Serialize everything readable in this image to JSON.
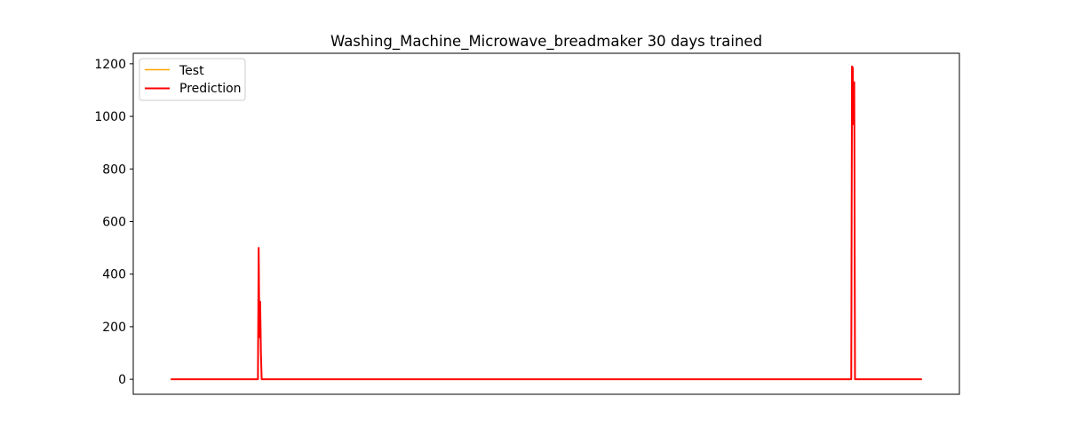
{
  "chart_data": {
    "type": "line",
    "title": "Washing_Machine_Microwave_breadmaker 30 days trained",
    "xlabel": "",
    "ylabel": "",
    "xlim": [
      -50,
      1050
    ],
    "ylim": [
      -57,
      1240
    ],
    "x_ticks_visible": false,
    "y_ticks": [
      0,
      200,
      400,
      600,
      800,
      1000,
      1200
    ],
    "grid": false,
    "legend_position": "upper-left",
    "colors": {
      "test": "#ffa500",
      "prediction": "#ff0000"
    },
    "series": [
      {
        "name": "Test",
        "color": "#ffa500",
        "points": [
          [
            0,
            0
          ],
          [
            116,
            0
          ],
          [
            117,
            500
          ],
          [
            118,
            160
          ],
          [
            119,
            295
          ],
          [
            120,
            100
          ],
          [
            121,
            0
          ],
          [
            906,
            0
          ],
          [
            907,
            1190
          ],
          [
            908,
            1185
          ],
          [
            909,
            970
          ],
          [
            910,
            1130
          ],
          [
            911,
            0
          ],
          [
            1000,
            0
          ]
        ]
      },
      {
        "name": "Prediction",
        "color": "#ff0000",
        "points": [
          [
            0,
            0
          ],
          [
            116,
            0
          ],
          [
            117,
            500
          ],
          [
            118,
            160
          ],
          [
            119,
            295
          ],
          [
            120,
            100
          ],
          [
            121,
            0
          ],
          [
            906,
            0
          ],
          [
            907,
            1190
          ],
          [
            908,
            1185
          ],
          [
            909,
            970
          ],
          [
            910,
            1130
          ],
          [
            911,
            0
          ],
          [
            1000,
            0
          ]
        ]
      }
    ]
  }
}
